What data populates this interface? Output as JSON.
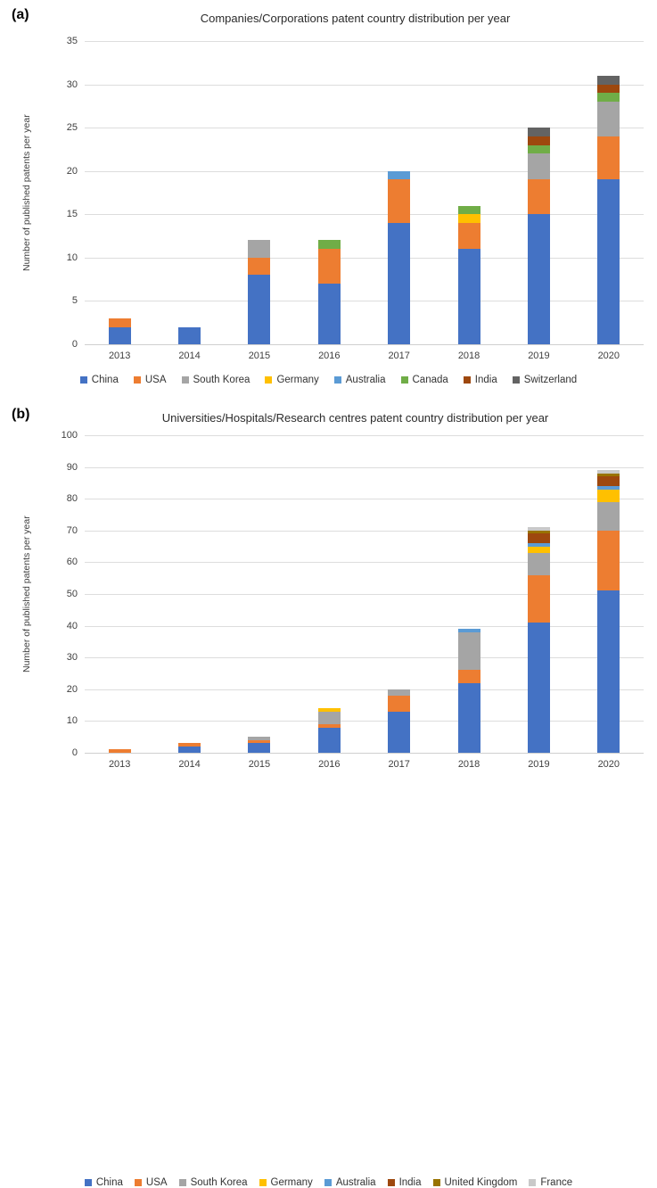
{
  "chart_data": [
    {
      "type": "bar",
      "stacked": true,
      "panel_label": "(a)",
      "title": "Companies/Corporations patent country distribution per year",
      "ylabel": "Number of published patents per year",
      "xlabel": "",
      "ylim": [
        0,
        35
      ],
      "ytick_step": 5,
      "grid": true,
      "legend_position": "bottom",
      "categories": [
        "2013",
        "2014",
        "2015",
        "2016",
        "2017",
        "2018",
        "2019",
        "2020"
      ],
      "series": [
        {
          "name": "China",
          "color": "#4472C4",
          "values": [
            2,
            2,
            8,
            7,
            14,
            11,
            15,
            19
          ]
        },
        {
          "name": "USA",
          "color": "#ED7D31",
          "values": [
            1,
            0,
            2,
            4,
            5,
            3,
            4,
            5
          ]
        },
        {
          "name": "South Korea",
          "color": "#A5A5A5",
          "values": [
            0,
            0,
            2,
            0,
            0,
            0,
            3,
            4
          ]
        },
        {
          "name": "Germany",
          "color": "#FFC000",
          "values": [
            0,
            0,
            0,
            0,
            0,
            1,
            0,
            0
          ]
        },
        {
          "name": "Australia",
          "color": "#5B9BD5",
          "values": [
            0,
            0,
            0,
            0,
            1,
            0,
            0,
            0
          ]
        },
        {
          "name": "Canada",
          "color": "#70AD47",
          "values": [
            0,
            0,
            0,
            1,
            0,
            1,
            1,
            1
          ]
        },
        {
          "name": "India",
          "color": "#9E480E",
          "values": [
            0,
            0,
            0,
            0,
            0,
            0,
            1,
            1
          ]
        },
        {
          "name": "Switzerland",
          "color": "#636363",
          "values": [
            0,
            0,
            0,
            0,
            0,
            0,
            1,
            1
          ]
        }
      ],
      "totals": [
        3,
        2,
        12,
        12,
        20,
        16,
        25,
        31
      ]
    },
    {
      "type": "bar",
      "stacked": true,
      "panel_label": "(b)",
      "title": "Universities/Hospitals/Research centres patent country distribution per year",
      "ylabel": "Number of published patents per year",
      "xlabel": "",
      "ylim": [
        0,
        100
      ],
      "ytick_step": 10,
      "grid": true,
      "legend_position": "bottom",
      "categories": [
        "2013",
        "2014",
        "2015",
        "2016",
        "2017",
        "2018",
        "2019",
        "2020"
      ],
      "series": [
        {
          "name": "China",
          "color": "#4472C4",
          "values": [
            0,
            2,
            3,
            8,
            13,
            22,
            41,
            51
          ]
        },
        {
          "name": "USA",
          "color": "#ED7D31",
          "values": [
            1,
            1,
            1,
            1,
            5,
            4,
            15,
            19
          ]
        },
        {
          "name": "South Korea",
          "color": "#A5A5A5",
          "values": [
            0,
            0,
            1,
            4,
            2,
            12,
            7,
            9
          ]
        },
        {
          "name": "Germany",
          "color": "#FFC000",
          "values": [
            0,
            0,
            0,
            1,
            0,
            0,
            2,
            4
          ]
        },
        {
          "name": "Australia",
          "color": "#5B9BD5",
          "values": [
            0,
            0,
            0,
            0,
            0,
            1,
            1,
            1
          ]
        },
        {
          "name": "India",
          "color": "#9E480E",
          "values": [
            0,
            0,
            0,
            0,
            0,
            0,
            3,
            3
          ]
        },
        {
          "name": "United Kingdom",
          "color": "#997300",
          "values": [
            0,
            0,
            0,
            0,
            0,
            0,
            1,
            1
          ]
        },
        {
          "name": "France",
          "color": "#C9C9C9",
          "values": [
            0,
            0,
            0,
            0,
            0,
            0,
            1,
            1
          ]
        }
      ],
      "totals": [
        1,
        3,
        5,
        14,
        20,
        39,
        71,
        89
      ]
    }
  ]
}
